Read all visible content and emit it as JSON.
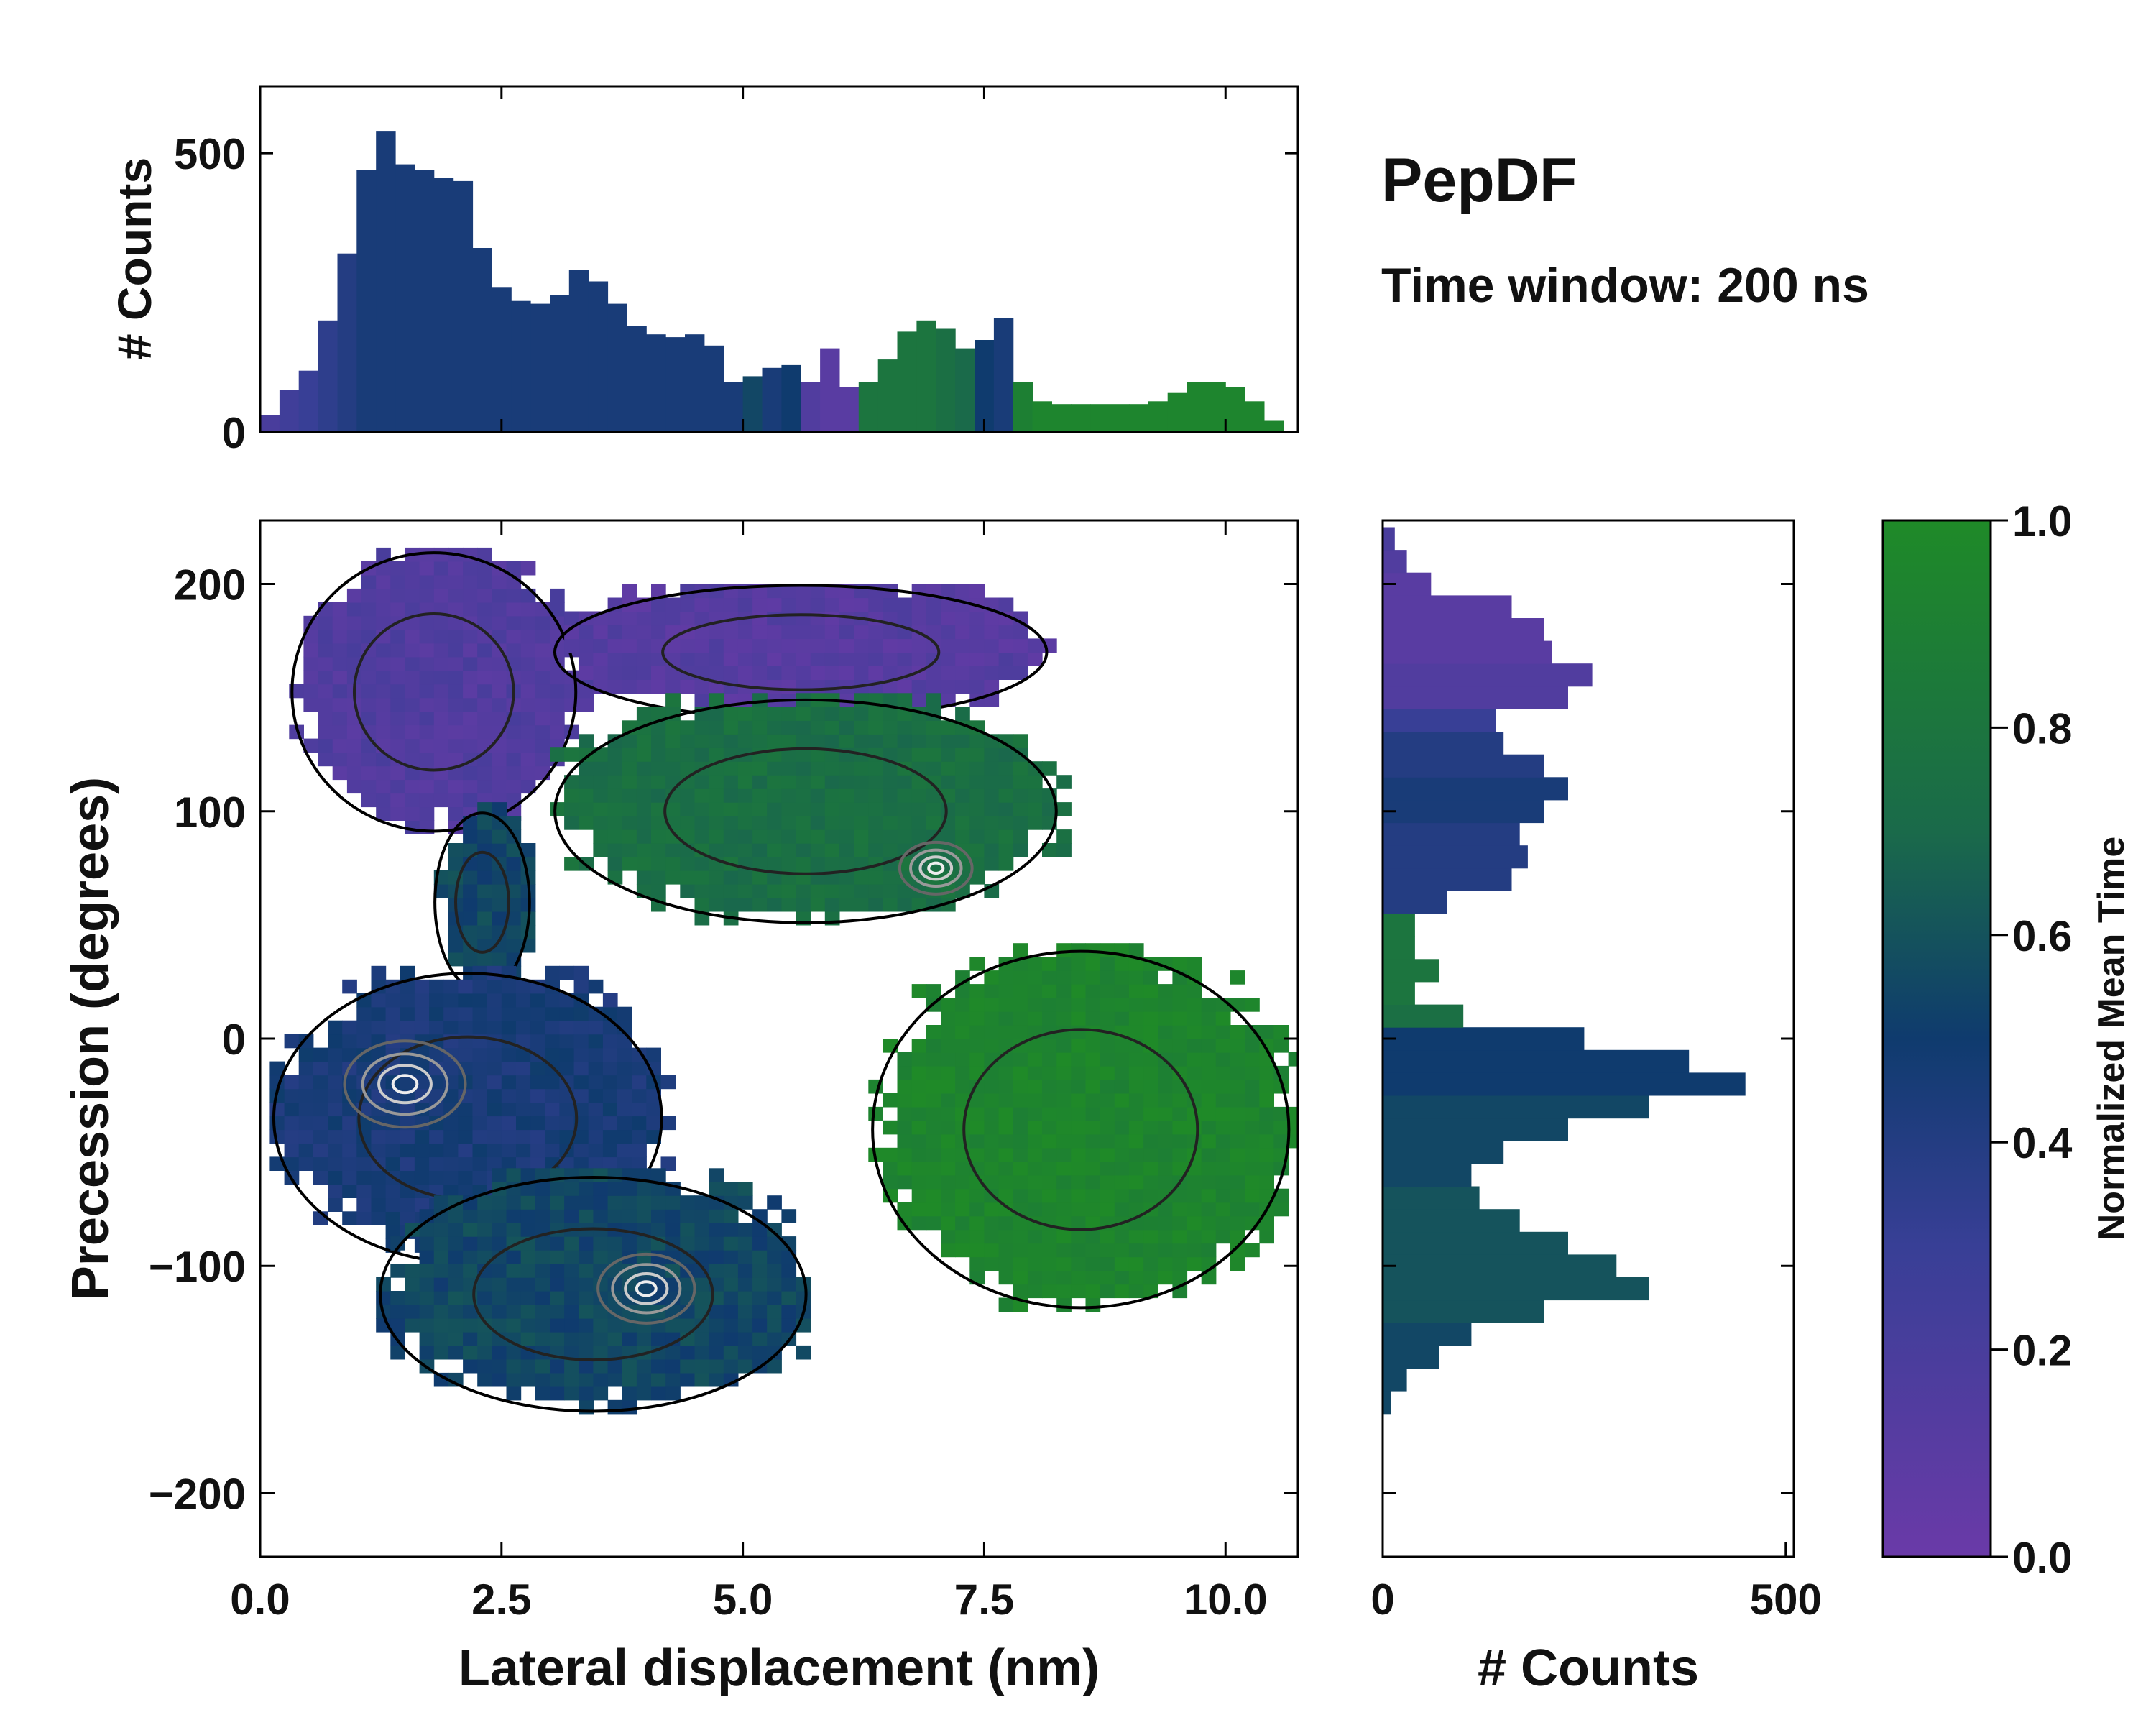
{
  "title": "PepDF",
  "subtitle": "Time window: 200 ns",
  "colors": {
    "low": "#6a3aa8",
    "mid": "#0f3b6e",
    "high": "#1f8a28",
    "contour_dark": "#222222",
    "contour_light": "#cccccc",
    "boundary": "#000000"
  },
  "chart_data": [
    {
      "id": "top_histogram",
      "type": "bar",
      "orientation": "vertical",
      "xlabel": "",
      "ylabel": "# Counts",
      "xlim": [
        0.0,
        10.75
      ],
      "ylim": [
        0,
        620
      ],
      "yticks": [
        0,
        500
      ],
      "ytick_labels": [
        "0",
        "500"
      ],
      "x": [
        0.2,
        0.4,
        0.6,
        0.8,
        1.0,
        1.2,
        1.4,
        1.6,
        1.8,
        2.0,
        2.2,
        2.4,
        2.6,
        2.8,
        3.0,
        3.2,
        3.4,
        3.6,
        3.8,
        4.0,
        4.2,
        4.4,
        4.6,
        4.8,
        5.0,
        5.2,
        5.4,
        5.6,
        5.8,
        6.0,
        6.2,
        6.4,
        6.6,
        6.8,
        7.0,
        7.2,
        7.4,
        7.6,
        7.8,
        8.0,
        8.2,
        8.4,
        8.6,
        8.8,
        9.0,
        9.2,
        9.4,
        9.6,
        9.8,
        10.0,
        10.2,
        10.4,
        10.6
      ],
      "values": [
        30,
        75,
        110,
        200,
        320,
        470,
        540,
        480,
        470,
        455,
        450,
        330,
        260,
        235,
        230,
        245,
        290,
        270,
        230,
        190,
        175,
        170,
        175,
        155,
        90,
        100,
        115,
        120,
        90,
        150,
        80,
        90,
        130,
        180,
        200,
        185,
        150,
        165,
        205,
        90,
        55,
        50,
        50,
        50,
        50,
        50,
        55,
        70,
        90,
        90,
        80,
        55,
        20
      ],
      "mean_time": [
        0.2,
        0.25,
        0.3,
        0.35,
        0.4,
        0.45,
        0.45,
        0.45,
        0.45,
        0.45,
        0.45,
        0.45,
        0.45,
        0.45,
        0.45,
        0.45,
        0.45,
        0.45,
        0.45,
        0.45,
        0.45,
        0.45,
        0.45,
        0.45,
        0.45,
        0.55,
        0.45,
        0.5,
        0.15,
        0.1,
        0.1,
        0.8,
        0.8,
        0.8,
        0.8,
        0.75,
        0.7,
        0.5,
        0.45,
        0.9,
        0.95,
        0.95,
        0.95,
        0.95,
        0.95,
        0.95,
        0.95,
        0.95,
        0.95,
        0.95,
        0.95,
        0.95,
        0.95
      ]
    },
    {
      "id": "main_heatmap",
      "type": "heatmap",
      "xlabel": "Lateral displacement (nm)",
      "ylabel": "Precession (degrees)",
      "xlim": [
        0.0,
        10.75
      ],
      "ylim": [
        -228,
        228
      ],
      "xticks": [
        0.0,
        2.5,
        5.0,
        7.5,
        10.0
      ],
      "xtick_labels": [
        "0.0",
        "2.5",
        "5.0",
        "7.5",
        "10.0"
      ],
      "yticks": [
        -200,
        -100,
        0,
        100,
        200
      ],
      "ytick_labels": [
        "−200",
        "−100",
        "0",
        "100",
        "200"
      ],
      "regions": [
        {
          "name": "upper-left-purple",
          "x": [
            0.3,
            3.3
          ],
          "y": [
            90,
            215
          ],
          "mean_time": 0.15
        },
        {
          "name": "top-purple-band",
          "x": [
            3.0,
            8.2
          ],
          "y": [
            140,
            200
          ],
          "mean_time": 0.12
        },
        {
          "name": "upper-green-arc",
          "x": [
            3.0,
            8.3
          ],
          "y": [
            50,
            150
          ],
          "mean_time": 0.75
        },
        {
          "name": "connector",
          "x": [
            1.8,
            2.8
          ],
          "y": [
            20,
            100
          ],
          "mean_time": 0.55
        },
        {
          "name": "left-cluster",
          "x": [
            0.1,
            4.2
          ],
          "y": [
            -100,
            30
          ],
          "mean_time": 0.45
        },
        {
          "name": "lower-left-cluster",
          "x": [
            1.2,
            5.7
          ],
          "y": [
            -165,
            -60
          ],
          "mean_time": 0.55
        },
        {
          "name": "right-green",
          "x": [
            6.3,
            10.7
          ],
          "y": [
            -120,
            40
          ],
          "mean_time": 0.95
        }
      ],
      "peaks": [
        {
          "x": 1.5,
          "y": -20,
          "density": 1.0
        },
        {
          "x": 4.0,
          "y": -110,
          "density": 0.8
        },
        {
          "x": 7.0,
          "y": 75,
          "density": 0.6
        }
      ]
    },
    {
      "id": "right_histogram",
      "type": "bar",
      "orientation": "horizontal",
      "xlabel": "# Counts",
      "ylabel": "",
      "xlim": [
        0,
        510
      ],
      "ylim": [
        -228,
        228
      ],
      "xticks": [
        0,
        500
      ],
      "xtick_labels": [
        "0",
        "500"
      ],
      "y": [
        -160,
        -150,
        -140,
        -130,
        -120,
        -110,
        -100,
        -90,
        -80,
        -70,
        -60,
        -50,
        -40,
        -30,
        -20,
        -10,
        0,
        10,
        20,
        30,
        40,
        50,
        60,
        70,
        80,
        90,
        100,
        110,
        120,
        130,
        140,
        150,
        160,
        170,
        180,
        190,
        200,
        210,
        220
      ],
      "values": [
        10,
        30,
        70,
        110,
        200,
        330,
        290,
        230,
        170,
        120,
        110,
        150,
        230,
        330,
        450,
        380,
        250,
        100,
        40,
        70,
        40,
        40,
        80,
        160,
        180,
        170,
        200,
        230,
        200,
        150,
        140,
        230,
        260,
        210,
        200,
        160,
        60,
        30,
        15
      ],
      "mean_time": [
        0.55,
        0.55,
        0.55,
        0.55,
        0.6,
        0.6,
        0.6,
        0.6,
        0.6,
        0.6,
        0.55,
        0.55,
        0.55,
        0.55,
        0.5,
        0.5,
        0.5,
        0.75,
        0.8,
        0.8,
        0.8,
        0.8,
        0.4,
        0.4,
        0.4,
        0.4,
        0.45,
        0.45,
        0.4,
        0.4,
        0.3,
        0.15,
        0.15,
        0.1,
        0.1,
        0.1,
        0.1,
        0.15,
        0.2
      ]
    },
    {
      "id": "colorbar",
      "type": "colorbar",
      "label": "Normalized Mean Time",
      "range": [
        0.0,
        1.0
      ],
      "ticks": [
        0.0,
        0.2,
        0.4,
        0.6,
        0.8,
        1.0
      ],
      "tick_labels": [
        "0.0",
        "0.2",
        "0.4",
        "0.6",
        "0.8",
        "1.0"
      ]
    }
  ]
}
